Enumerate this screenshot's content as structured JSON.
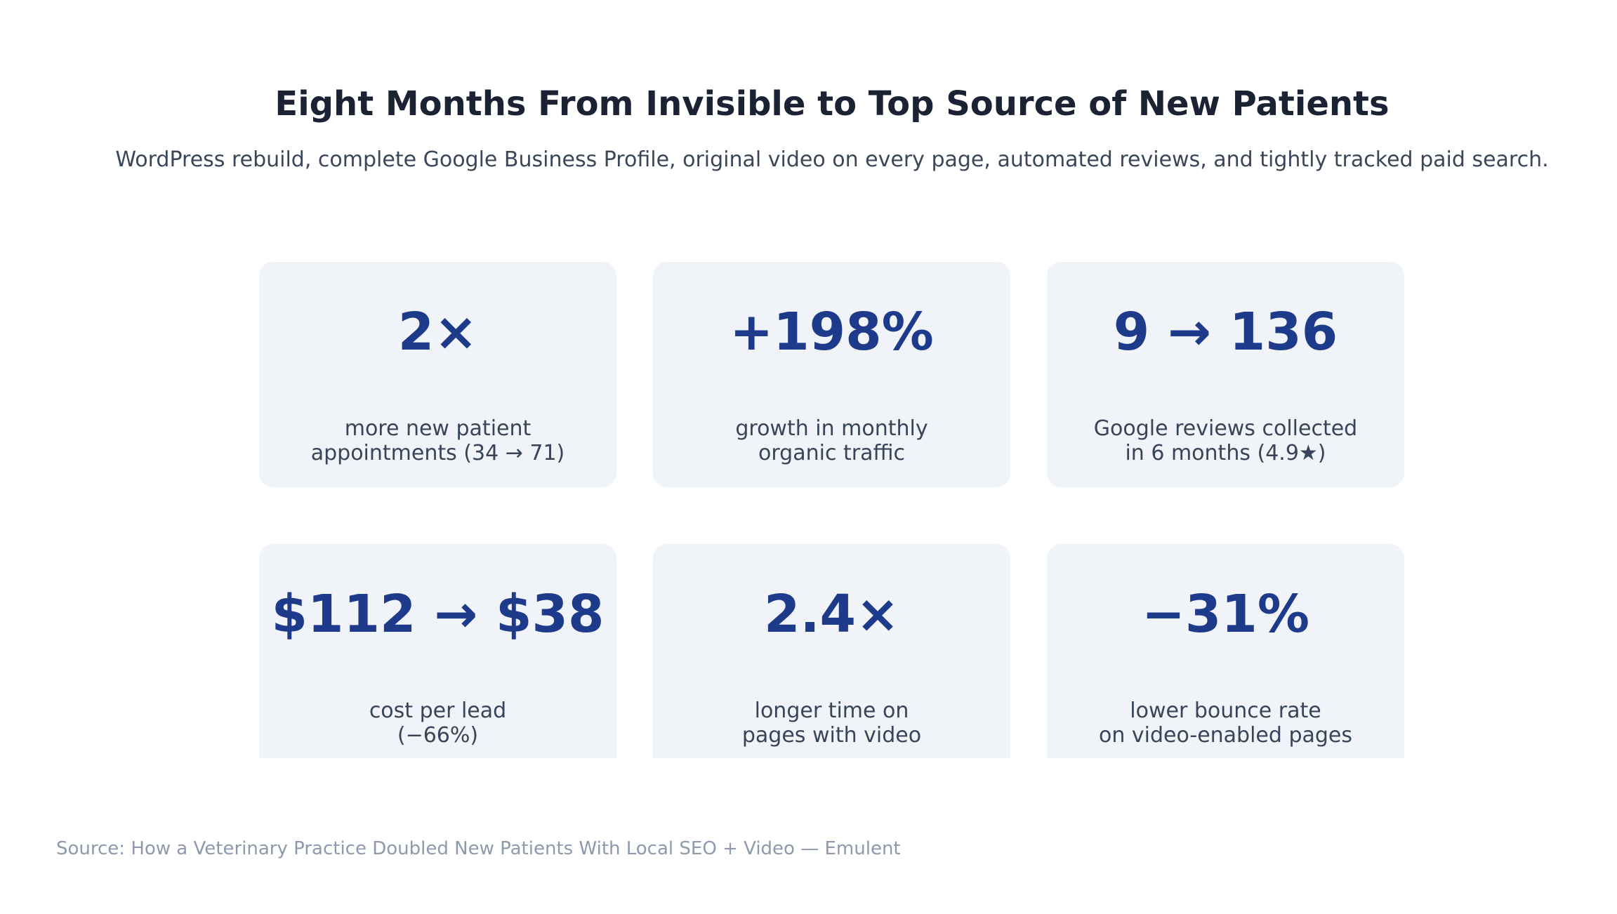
{
  "title": "Eight Months From Invisible to Top Source of New Patients",
  "subtitle": "WordPress rebuild, complete Google Business Profile, original video on every page, automated reviews, and tightly tracked paid search.",
  "source": "Source: How a Veterinary Practice Doubled New Patients With Local SEO + Video — Emulent",
  "colors": {
    "background": "#ffffff",
    "card_background": "#f0f3f8",
    "value_accent": "#1e3a8a",
    "title_text": "#1a2233",
    "label_text": "#37445a",
    "source_text": "#8e99ad"
  },
  "stats": [
    {
      "value": "2×",
      "label_line1": "more new patient",
      "label_line2": "appointments (34 → 71)"
    },
    {
      "value": "+198%",
      "label_line1": "growth in monthly",
      "label_line2": "organic traffic"
    },
    {
      "value": "9 → 136",
      "label_line1": "Google reviews collected",
      "label_line2": "in 6 months (4.9★)"
    },
    {
      "value": "$112 → $38",
      "label_line1": "cost per lead",
      "label_line2": "(−66%)"
    },
    {
      "value": "2.4×",
      "label_line1": "longer time on",
      "label_line2": "pages with video"
    },
    {
      "value": "−31%",
      "label_line1": "lower bounce rate",
      "label_line2": "on video-enabled pages"
    }
  ],
  "chart_data": {
    "type": "table",
    "title": "Eight Months From Invisible to Top Source of New Patients",
    "subtitle": "WordPress rebuild, complete Google Business Profile, original video on every page, automated reviews, and tightly tracked paid search.",
    "source": "Source: How a Veterinary Practice Doubled New Patients With Local SEO + Video — Emulent",
    "metrics": [
      {
        "headline": "2×",
        "description": "more new patient appointments (34 → 71)",
        "before": 34,
        "after": 71
      },
      {
        "headline": "+198%",
        "description": "growth in monthly organic traffic",
        "change_pct": 198
      },
      {
        "headline": "9 → 136",
        "description": "Google reviews collected in 6 months (4.9★)",
        "before": 9,
        "after": 136,
        "rating_stars": 4.9
      },
      {
        "headline": "$112 → $38",
        "description": "cost per lead (−66%)",
        "before": 112,
        "after": 38,
        "change_pct": -66
      },
      {
        "headline": "2.4×",
        "description": "longer time on pages with video",
        "multiplier": 2.4
      },
      {
        "headline": "−31%",
        "description": "lower bounce rate on video-enabled pages",
        "change_pct": -31
      }
    ]
  }
}
